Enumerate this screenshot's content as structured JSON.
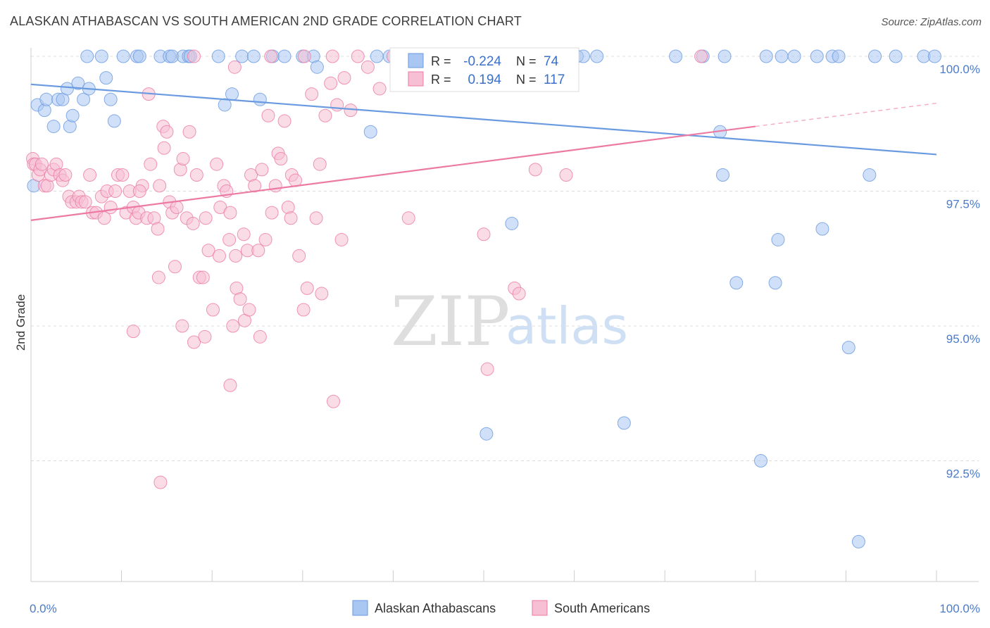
{
  "title": "ALASKAN ATHABASCAN VS SOUTH AMERICAN 2ND GRADE CORRELATION CHART",
  "source": "Source: ZipAtlas.com",
  "watermark": {
    "zip": "ZIP",
    "atlas": "atlas"
  },
  "chart_data": {
    "type": "scatter",
    "title": "ALASKAN ATHABASCAN VS SOUTH AMERICAN 2ND GRADE CORRELATION CHART",
    "xlabel": "",
    "ylabel": "2nd Grade",
    "xlim": [
      0,
      100
    ],
    "ylim": [
      90.7,
      100.3
    ],
    "x_tick_labels": [
      "0.0%",
      "100.0%"
    ],
    "y_ticks": [
      92.5,
      95.0,
      97.5,
      100.0
    ],
    "y_tick_labels": [
      "92.5%",
      "95.0%",
      "97.5%",
      "100.0%"
    ],
    "legend_stats": {
      "r_label": "R =",
      "n_label": "N =",
      "rows": [
        {
          "r": "-0.224",
          "n": "74",
          "color": "#6a9ae0"
        },
        {
          "r": "0.194",
          "n": "117",
          "color": "#f08fb0"
        }
      ]
    },
    "series": [
      {
        "name": "Alaskan Athabascans",
        "color": "#6a9ae0",
        "fill": "#a9c7f2",
        "trend": {
          "x0": 0,
          "y0": 99.48,
          "x1": 100,
          "y1": 98.18
        },
        "points": [
          [
            0.3,
            97.6
          ],
          [
            0.7,
            99.1
          ],
          [
            1.5,
            99.0
          ],
          [
            1.7,
            99.2
          ],
          [
            2.5,
            98.7
          ],
          [
            3.0,
            99.2
          ],
          [
            3.5,
            99.2
          ],
          [
            4.0,
            99.4
          ],
          [
            4.3,
            98.7
          ],
          [
            4.6,
            98.9
          ],
          [
            5.2,
            99.5
          ],
          [
            5.8,
            99.2
          ],
          [
            6.4,
            99.4
          ],
          [
            8.3,
            99.6
          ],
          [
            8.8,
            99.2
          ],
          [
            9.2,
            98.8
          ],
          [
            6.2,
            100
          ],
          [
            7.8,
            100
          ],
          [
            10.2,
            100
          ],
          [
            11.7,
            100
          ],
          [
            12.0,
            100
          ],
          [
            14.3,
            100
          ],
          [
            15.3,
            100
          ],
          [
            15.6,
            100
          ],
          [
            16.8,
            100
          ],
          [
            17.4,
            100
          ],
          [
            17.6,
            100
          ],
          [
            20.7,
            100
          ],
          [
            23.3,
            100
          ],
          [
            24.6,
            100
          ],
          [
            26.7,
            100
          ],
          [
            28.0,
            100
          ],
          [
            30.0,
            100
          ],
          [
            31.2,
            100
          ],
          [
            38.2,
            100
          ],
          [
            39.6,
            100
          ],
          [
            42.6,
            100
          ],
          [
            48.0,
            100
          ],
          [
            56.1,
            100
          ],
          [
            60.3,
            100
          ],
          [
            61.0,
            100
          ],
          [
            62.5,
            100
          ],
          [
            71.2,
            100
          ],
          [
            74.2,
            100
          ],
          [
            76.6,
            100
          ],
          [
            81.2,
            100
          ],
          [
            82.9,
            100
          ],
          [
            84.3,
            100
          ],
          [
            86.8,
            100
          ],
          [
            88.5,
            100
          ],
          [
            89.2,
            100
          ],
          [
            93.2,
            100
          ],
          [
            95.5,
            100
          ],
          [
            98.6,
            100
          ],
          [
            99.8,
            100
          ],
          [
            31.6,
            99.8
          ],
          [
            22.2,
            99.3
          ],
          [
            21.4,
            99.1
          ],
          [
            25.3,
            99.2
          ],
          [
            37.5,
            98.6
          ],
          [
            76.1,
            98.6
          ],
          [
            76.4,
            97.8
          ],
          [
            92.6,
            97.8
          ],
          [
            53.1,
            96.9
          ],
          [
            77.9,
            95.8
          ],
          [
            82.5,
            96.6
          ],
          [
            87.4,
            96.8
          ],
          [
            82.2,
            95.8
          ],
          [
            90.3,
            94.6
          ],
          [
            50.3,
            93.0
          ],
          [
            65.5,
            93.2
          ],
          [
            80.6,
            92.5
          ],
          [
            91.4,
            91.0
          ]
        ]
      },
      {
        "name": "South Americans",
        "color": "#ec7aa3",
        "fill": "#f6bfd3",
        "trend": {
          "x0": 0,
          "y0": 96.96,
          "x1": 80,
          "y1": 98.7
        },
        "trend_dashed_to": {
          "x": 100,
          "y": 99.13
        },
        "points": [
          [
            0.2,
            98.1
          ],
          [
            0.3,
            98.0
          ],
          [
            0.5,
            98.0
          ],
          [
            0.8,
            97.8
          ],
          [
            1.0,
            97.9
          ],
          [
            1.2,
            98.0
          ],
          [
            1.5,
            97.6
          ],
          [
            1.8,
            97.6
          ],
          [
            2.2,
            97.8
          ],
          [
            2.5,
            97.9
          ],
          [
            2.8,
            98.0
          ],
          [
            3.2,
            97.8
          ],
          [
            3.5,
            97.7
          ],
          [
            3.8,
            97.8
          ],
          [
            4.2,
            97.4
          ],
          [
            4.5,
            97.3
          ],
          [
            5.0,
            97.3
          ],
          [
            5.3,
            97.4
          ],
          [
            5.6,
            97.3
          ],
          [
            6.0,
            97.3
          ],
          [
            6.5,
            97.8
          ],
          [
            6.8,
            97.1
          ],
          [
            7.2,
            97.1
          ],
          [
            7.8,
            97.4
          ],
          [
            8.1,
            97.0
          ],
          [
            8.4,
            97.5
          ],
          [
            8.8,
            97.2
          ],
          [
            9.3,
            97.5
          ],
          [
            9.6,
            97.8
          ],
          [
            10.1,
            97.8
          ],
          [
            10.5,
            97.1
          ],
          [
            10.9,
            97.5
          ],
          [
            11.3,
            97.2
          ],
          [
            11.6,
            97.0
          ],
          [
            11.9,
            97.1
          ],
          [
            12.3,
            97.6
          ],
          [
            12.8,
            97.0
          ],
          [
            13.2,
            98.0
          ],
          [
            13.6,
            97.0
          ],
          [
            14.0,
            96.8
          ],
          [
            14.2,
            97.6
          ],
          [
            14.6,
            98.7
          ],
          [
            15.0,
            98.6
          ],
          [
            15.3,
            97.3
          ],
          [
            15.6,
            97.1
          ],
          [
            16.1,
            97.2
          ],
          [
            16.5,
            97.9
          ],
          [
            16.8,
            98.1
          ],
          [
            17.2,
            97.0
          ],
          [
            17.5,
            98.6
          ],
          [
            17.9,
            96.9
          ],
          [
            18.3,
            97.8
          ],
          [
            18.6,
            95.9
          ],
          [
            19.0,
            95.9
          ],
          [
            19.3,
            97.0
          ],
          [
            19.6,
            96.4
          ],
          [
            20.1,
            95.3
          ],
          [
            20.5,
            98.0
          ],
          [
            20.9,
            97.2
          ],
          [
            21.3,
            97.6
          ],
          [
            21.6,
            97.5
          ],
          [
            22.0,
            97.1
          ],
          [
            22.3,
            95.0
          ],
          [
            22.7,
            95.7
          ],
          [
            23.1,
            95.5
          ],
          [
            23.5,
            96.7
          ],
          [
            23.9,
            96.4
          ],
          [
            24.3,
            97.8
          ],
          [
            24.7,
            97.6
          ],
          [
            25.1,
            96.4
          ],
          [
            25.5,
            97.9
          ],
          [
            25.9,
            96.6
          ],
          [
            26.2,
            98.9
          ],
          [
            26.6,
            97.1
          ],
          [
            27.0,
            97.6
          ],
          [
            27.3,
            98.2
          ],
          [
            27.6,
            98.1
          ],
          [
            28.0,
            98.8
          ],
          [
            28.4,
            97.2
          ],
          [
            28.8,
            97.8
          ],
          [
            29.2,
            97.7
          ],
          [
            29.6,
            96.3
          ],
          [
            30.1,
            95.3
          ],
          [
            30.5,
            95.7
          ],
          [
            31.0,
            99.3
          ],
          [
            31.5,
            97.0
          ],
          [
            31.9,
            98.0
          ],
          [
            32.5,
            98.9
          ],
          [
            33.1,
            99.5
          ],
          [
            33.8,
            99.1
          ],
          [
            34.6,
            99.6
          ],
          [
            35.3,
            99.0
          ],
          [
            36.1,
            100
          ],
          [
            37.2,
            99.8
          ],
          [
            38.5,
            99.4
          ],
          [
            14.1,
            95.9
          ],
          [
            15.9,
            96.1
          ],
          [
            16.7,
            95.0
          ],
          [
            20.8,
            96.3
          ],
          [
            21.9,
            96.6
          ],
          [
            22.6,
            96.3
          ],
          [
            23.6,
            95.1
          ],
          [
            24.1,
            95.3
          ],
          [
            25.3,
            94.8
          ],
          [
            28.7,
            97.0
          ],
          [
            32.1,
            95.6
          ],
          [
            33.4,
            93.6
          ],
          [
            34.3,
            96.6
          ],
          [
            50.0,
            96.7
          ],
          [
            50.4,
            94.2
          ],
          [
            53.4,
            95.7
          ],
          [
            53.9,
            95.6
          ],
          [
            55.7,
            97.9
          ],
          [
            59.1,
            97.8
          ],
          [
            41.7,
            97.0
          ],
          [
            18.0,
            94.7
          ],
          [
            19.2,
            94.8
          ],
          [
            22.0,
            93.9
          ],
          [
            14.3,
            92.1
          ],
          [
            11.3,
            94.9
          ],
          [
            12.0,
            97.5
          ],
          [
            13.0,
            99.3
          ],
          [
            14.7,
            98.3
          ],
          [
            74.0,
            100
          ],
          [
            18.0,
            100
          ],
          [
            22.5,
            99.8
          ],
          [
            26.5,
            100
          ],
          [
            30.2,
            100
          ],
          [
            33.3,
            100
          ],
          [
            40.0,
            100
          ],
          [
            42.7,
            100
          ],
          [
            44.5,
            100
          ]
        ]
      }
    ]
  }
}
